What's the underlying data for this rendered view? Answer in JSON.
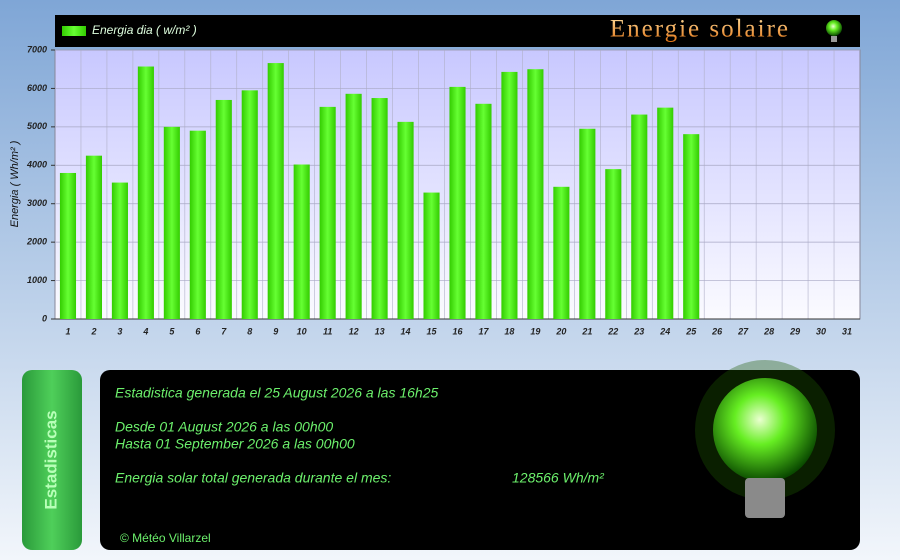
{
  "chart_data": {
    "type": "bar",
    "title": "Energie solaire",
    "y_label": "Energia ( Wh/m² )",
    "categories": [
      "1",
      "2",
      "3",
      "4",
      "5",
      "6",
      "7",
      "8",
      "9",
      "10",
      "11",
      "12",
      "13",
      "14",
      "15",
      "16",
      "17",
      "18",
      "19",
      "20",
      "21",
      "22",
      "23",
      "24",
      "25",
      "26",
      "27",
      "28",
      "29",
      "30",
      "31"
    ],
    "series": [
      {
        "name": "Energia dia ( w/m² )",
        "color": "#44dd11",
        "values": [
          3800,
          4250,
          3550,
          6570,
          5000,
          4900,
          5700,
          5950,
          6660,
          4020,
          5520,
          5860,
          5750,
          5130,
          3290,
          6040,
          5600,
          6430,
          6500,
          3440,
          4950,
          3900,
          5320,
          5500,
          4810,
          null,
          null,
          null,
          null,
          null,
          null
        ]
      }
    ],
    "ylim": [
      0,
      7000
    ],
    "yticks": [
      0,
      1000,
      2000,
      3000,
      4000,
      5000,
      6000,
      7000
    ],
    "grid": true
  },
  "stats": {
    "tab": "Estadisticas",
    "generated": "Estadistica generada el 25 August 2026 a las 16h25",
    "from": "Desde 01 August 2026 a las 00h00",
    "to": "Hasta 01 September 2026 a las 00h00",
    "total_label": "Energia solar total generada durante el mes:",
    "total_value": "128566 Wh/m²",
    "footer": "© Météo Villarzel"
  }
}
